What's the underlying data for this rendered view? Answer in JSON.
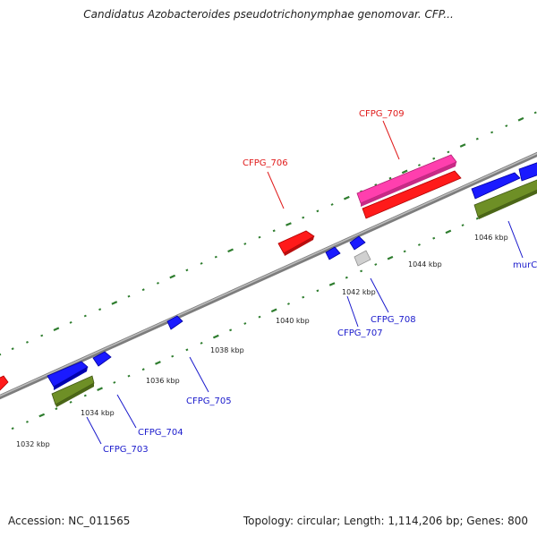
{
  "title": "Candidatus Azobacteroides pseudotrichonymphae genomovar. CFP...",
  "footer": {
    "accession": "Accession: NC_011565",
    "summary": "Topology: circular; Length: 1,114,206 bp; Genes: 800"
  },
  "colors": {
    "backbone": "#8a8a8a",
    "tick_major": "#2e7d2e",
    "tick_minor": "#2e7d2e",
    "gene_blue": "#1a1aff",
    "gene_red": "#ff1a1a",
    "gene_pink": "#ff3fae",
    "gene_olive": "#6e8f26",
    "gene_gray": "#c8c8c8",
    "label_blue": "#1a1acc",
    "label_red": "#e01b1b"
  },
  "scale_labels": [
    "1032 kbp",
    "1034 kbp",
    "1036 kbp",
    "1038 kbp",
    "1040 kbp",
    "1042 kbp",
    "1044 kbp",
    "1046 kbp"
  ],
  "gene_labels": [
    {
      "name": "CFPG_703",
      "color": "blue"
    },
    {
      "name": "CFPG_704",
      "color": "blue"
    },
    {
      "name": "CFPG_705",
      "color": "blue"
    },
    {
      "name": "CFPG_706",
      "color": "red"
    },
    {
      "name": "CFPG_707",
      "color": "blue"
    },
    {
      "name": "CFPG_708",
      "color": "blue"
    },
    {
      "name": "CFPG_709",
      "color": "red"
    },
    {
      "name": "murC",
      "color": "blue"
    }
  ]
}
